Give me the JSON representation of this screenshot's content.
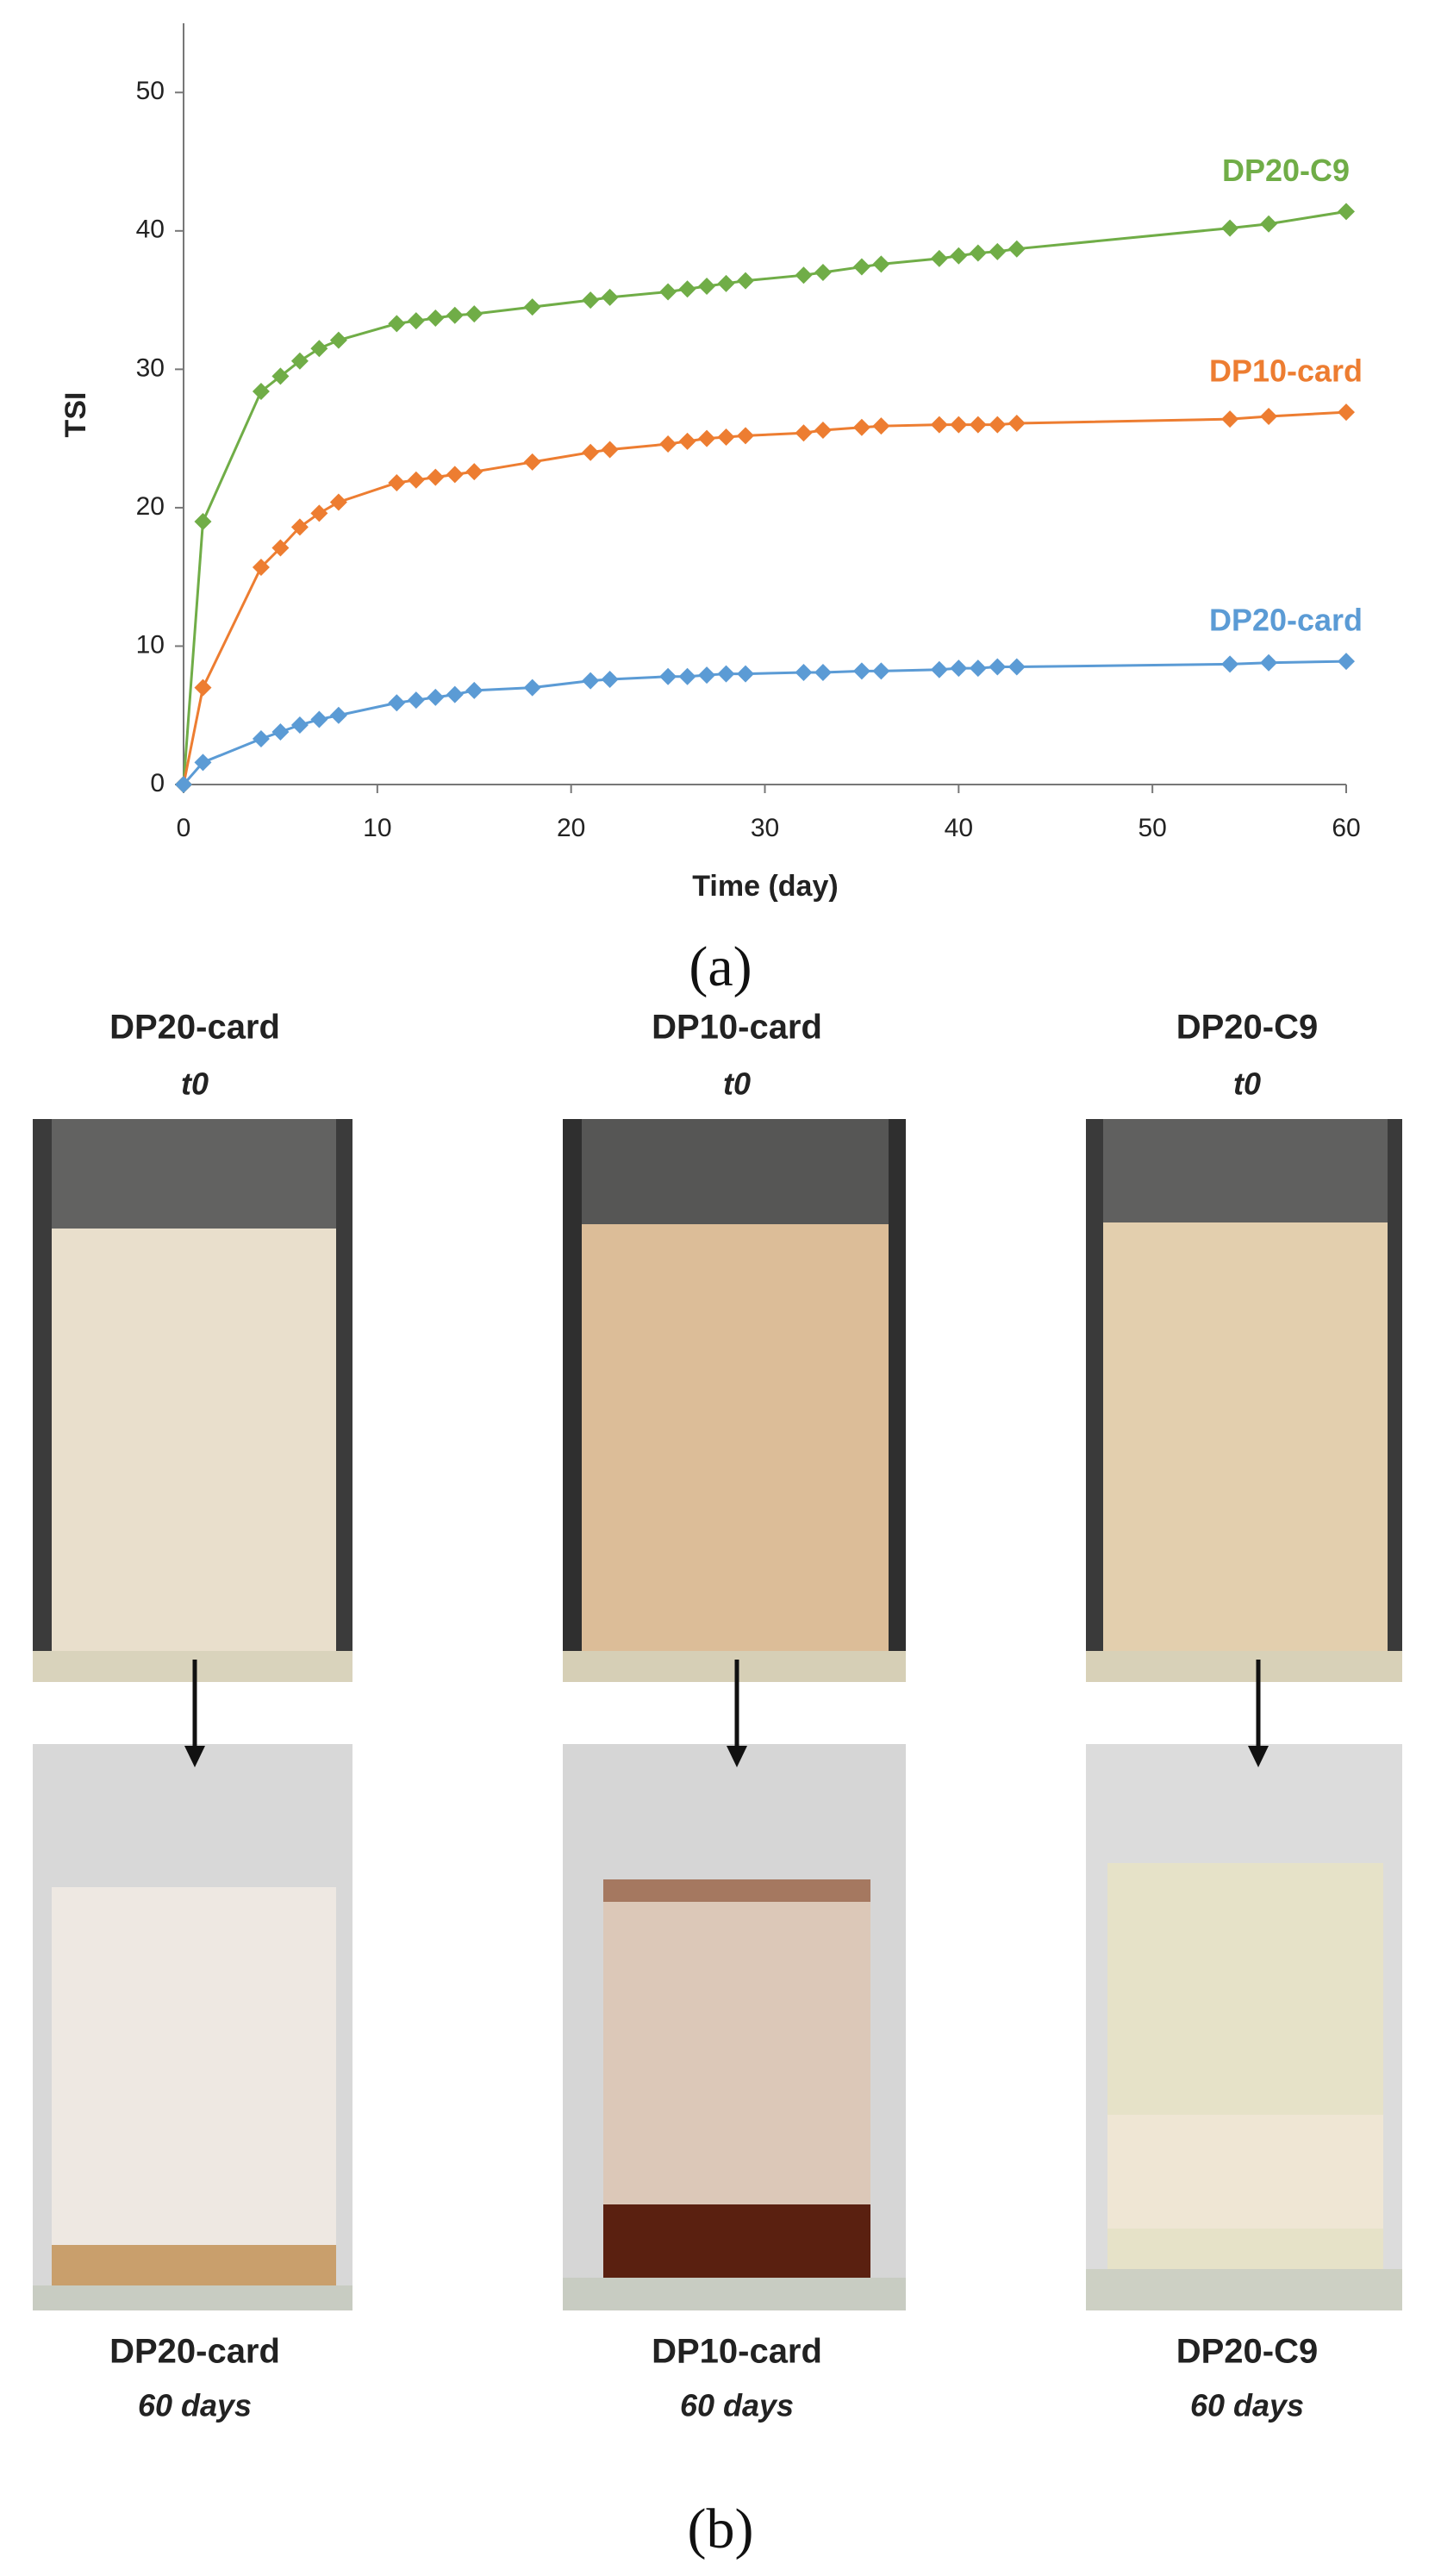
{
  "chart_data": {
    "type": "line",
    "xlabel": "Time (day)",
    "ylabel": "TSI",
    "x": [
      0,
      1,
      4,
      5,
      6,
      7,
      8,
      11,
      12,
      13,
      14,
      15,
      18,
      21,
      22,
      25,
      26,
      27,
      28,
      29,
      32,
      33,
      35,
      36,
      39,
      40,
      41,
      42,
      43,
      54,
      56,
      60
    ],
    "series": [
      {
        "name": "DP20-C9",
        "color": "#70ad47",
        "values": [
          0,
          19,
          28.4,
          29.5,
          30.6,
          31.5,
          32.1,
          33.3,
          33.5,
          33.7,
          33.9,
          34.0,
          34.5,
          35.0,
          35.2,
          35.6,
          35.8,
          36.0,
          36.2,
          36.4,
          36.8,
          37.0,
          37.4,
          37.6,
          38.0,
          38.2,
          38.4,
          38.5,
          38.7,
          40.2,
          40.5,
          41.4
        ]
      },
      {
        "name": "DP10-card",
        "color": "#ed7d31",
        "values": [
          0,
          7,
          15.7,
          17.1,
          18.6,
          19.6,
          20.4,
          21.8,
          22.0,
          22.2,
          22.4,
          22.6,
          23.3,
          24.0,
          24.2,
          24.6,
          24.8,
          25.0,
          25.1,
          25.2,
          25.4,
          25.6,
          25.8,
          25.9,
          26.0,
          26.0,
          26.0,
          26.0,
          26.1,
          26.4,
          26.6,
          26.9
        ]
      },
      {
        "name": "DP20-card",
        "color": "#5b9bd5",
        "values": [
          0,
          1.6,
          3.3,
          3.8,
          4.3,
          4.7,
          5.0,
          5.9,
          6.1,
          6.3,
          6.5,
          6.8,
          7.0,
          7.5,
          7.6,
          7.8,
          7.8,
          7.9,
          8.0,
          8.0,
          8.1,
          8.1,
          8.2,
          8.2,
          8.3,
          8.4,
          8.4,
          8.5,
          8.5,
          8.7,
          8.8,
          8.9
        ]
      }
    ],
    "xlim": [
      0,
      60
    ],
    "xticks": [
      0,
      10,
      20,
      30,
      40,
      50,
      60
    ],
    "ylim": [
      0,
      55
    ],
    "yticks": [
      0,
      10,
      20,
      30,
      40,
      50
    ],
    "grid": false
  },
  "figure": {
    "caption_a": "(a)",
    "caption_b": "(b)",
    "samples": [
      {
        "top_name": "DP20-card",
        "top_time": "t0",
        "bottom_name": "DP20-card",
        "bottom_time": "60 days"
      },
      {
        "top_name": "DP10-card",
        "top_time": "t0",
        "bottom_name": "DP10-card",
        "bottom_time": "60 days"
      },
      {
        "top_name": "DP20-C9",
        "top_time": "t0",
        "bottom_name": "DP20-C9",
        "bottom_time": "60 days"
      }
    ]
  }
}
